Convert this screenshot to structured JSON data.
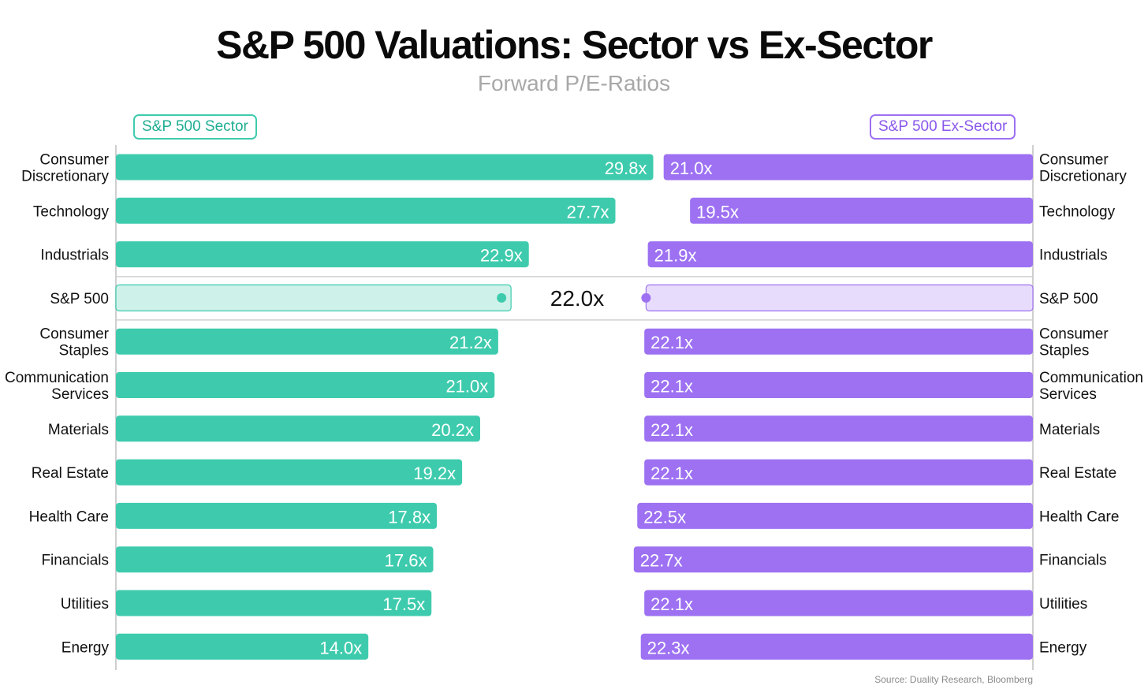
{
  "title": "S&P 500 Valuations: Sector vs Ex-Sector",
  "subtitle": "Forward P/E-Ratios",
  "legend": {
    "left": "S&P 500 Sector",
    "right": "S&P 500 Ex-Sector"
  },
  "source": "Source: Duality Research, Bloomberg",
  "colors": {
    "sector": "#3ecbad",
    "ex_sector": "#9d71f2",
    "sector_light": "#cef2ea",
    "ex_sector_light": "#e8dcfc",
    "axis": "#cfcfcf"
  },
  "chart_data": {
    "type": "bar",
    "orientation": "horizontal-butterfly",
    "categories": [
      [
        "Consumer",
        "Discretionary"
      ],
      [
        "Technology"
      ],
      [
        "Industrials"
      ],
      [
        "S&P 500"
      ],
      [
        "Consumer",
        "Staples"
      ],
      [
        "Communication",
        "Services"
      ],
      [
        "Materials"
      ],
      [
        "Real Estate"
      ],
      [
        "Health Care"
      ],
      [
        "Financials"
      ],
      [
        "Utilities"
      ],
      [
        "Energy"
      ]
    ],
    "series": [
      {
        "name": "S&P 500 Sector",
        "values": [
          29.8,
          27.7,
          22.9,
          22.0,
          21.2,
          21.0,
          20.2,
          19.2,
          17.8,
          17.6,
          17.5,
          14.0
        ],
        "labels": [
          "29.8x",
          "27.7x",
          "22.9x",
          "",
          "21.2x",
          "21.0x",
          "20.2x",
          "19.2x",
          "17.8x",
          "17.6x",
          "17.5x",
          "14.0x"
        ]
      },
      {
        "name": "S&P 500 Ex-Sector",
        "values": [
          21.0,
          19.5,
          21.9,
          22.0,
          22.1,
          22.1,
          22.1,
          22.1,
          22.5,
          22.7,
          22.1,
          22.3
        ],
        "labels": [
          "21.0x",
          "19.5x",
          "21.9x",
          "",
          "22.1x",
          "22.1x",
          "22.1x",
          "22.1x",
          "22.5x",
          "22.7x",
          "22.1x",
          "22.3x"
        ]
      }
    ],
    "benchmark": {
      "category": "S&P 500",
      "value": 22.0,
      "label": "22.0x"
    },
    "left_axis_range": [
      0,
      29.8
    ],
    "grid": false
  }
}
